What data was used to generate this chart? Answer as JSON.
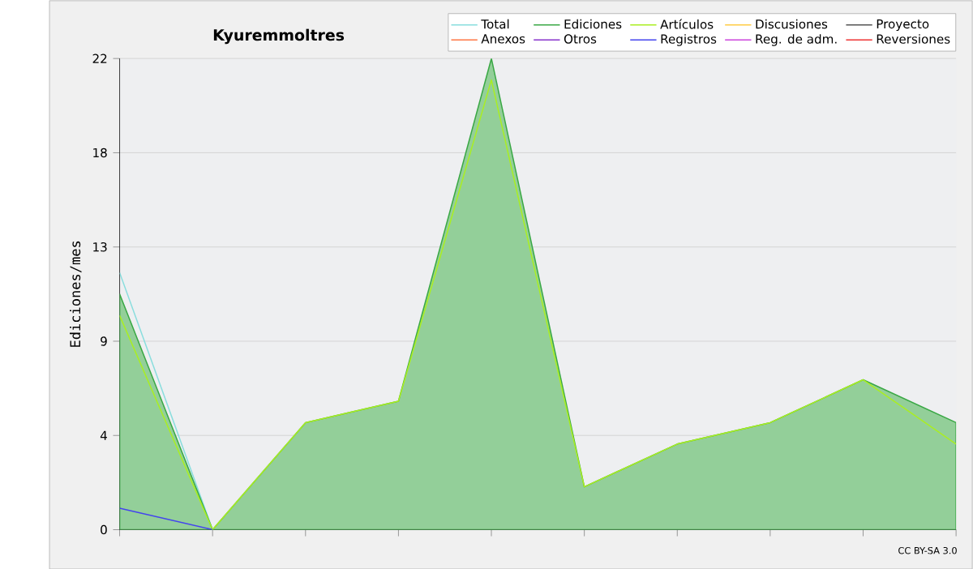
{
  "chart_data": {
    "type": "line",
    "title": "Kyuremmoltres",
    "ylabel": "Ediciones/mes",
    "categories": [
      null,
      null,
      null,
      null,
      null,
      null,
      null,
      null,
      null,
      null
    ],
    "series": [
      {
        "name": "Total",
        "color": "#88dddd",
        "values": [
          12,
          0,
          null,
          null,
          null,
          null,
          null,
          null,
          null,
          null
        ]
      },
      {
        "name": "Ediciones",
        "type": "area",
        "color": "#3aa845",
        "values": [
          11,
          0,
          5,
          6,
          22,
          2,
          4,
          5,
          7,
          5
        ]
      },
      {
        "name": "Artículos",
        "color": "#aaee22",
        "values": [
          10,
          0,
          5,
          6,
          21,
          2,
          4,
          5,
          7,
          4
        ]
      },
      {
        "name": "Discusiones",
        "color": "#ffcc44",
        "values": [
          null,
          null,
          null,
          null,
          null,
          null,
          null,
          null,
          null,
          null
        ]
      },
      {
        "name": "Proyecto",
        "color": "#555555",
        "values": [
          null,
          null,
          null,
          null,
          null,
          null,
          null,
          null,
          null,
          null
        ]
      },
      {
        "name": "Anexos",
        "color": "#ff7744",
        "values": [
          null,
          null,
          null,
          null,
          null,
          null,
          null,
          null,
          null,
          null
        ]
      },
      {
        "name": "Otros",
        "color": "#8833cc",
        "values": [
          null,
          null,
          null,
          null,
          null,
          null,
          null,
          null,
          null,
          null
        ]
      },
      {
        "name": "Registros",
        "color": "#4444ee",
        "values": [
          1,
          0,
          null,
          null,
          null,
          null,
          null,
          null,
          null,
          null
        ]
      },
      {
        "name": "Reg. de adm.",
        "color": "#cc44dd",
        "values": [
          null,
          null,
          null,
          null,
          null,
          null,
          null,
          null,
          null,
          null
        ]
      },
      {
        "name": "Reversiones",
        "color": "#ee3333",
        "values": [
          null,
          null,
          null,
          null,
          null,
          null,
          null,
          null,
          null,
          null
        ]
      }
    ],
    "ylim": [
      0,
      22
    ],
    "yticks": [
      0,
      {
        "value": 4.4,
        "label": "4"
      },
      {
        "value": 8.8,
        "label": "9"
      },
      {
        "value": 13.2,
        "label": "13"
      },
      {
        "value": 17.6,
        "label": "18"
      },
      22
    ],
    "grid": "y",
    "legend": "top right",
    "annotations": [
      "CC BY-SA 3.0"
    ]
  }
}
